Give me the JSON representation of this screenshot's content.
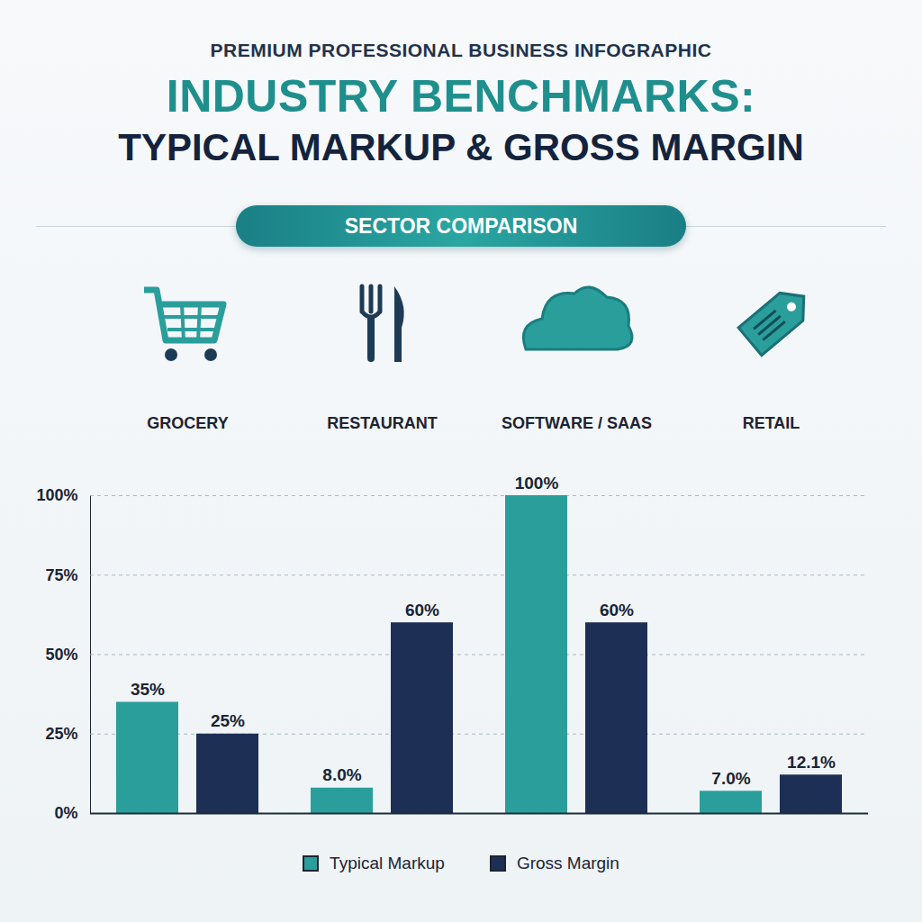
{
  "chart_data": {
    "type": "bar",
    "title": "INDUSTRY BENCHMARKS:",
    "subtitle": "TYPICAL MARKUP & GROSS MARGIN",
    "annotations": [
      "PREMIUM PROFESSIONAL BUSINESS INFOGRAPHIC",
      "SECTOR COMPARISON"
    ],
    "categories": [
      "GROCERY",
      "RESTAURANT",
      "SOFTWARE / SAAS",
      "RETAIL"
    ],
    "series": [
      {
        "name": "Typical Markup",
        "color": "#2a9e9b",
        "values": [
          35,
          8.0,
          100,
          7.0
        ],
        "value_labels": [
          "35%",
          "8.0%",
          "100%",
          "7.0%"
        ]
      },
      {
        "name": "Gross Margin",
        "color": "#1d2f55",
        "values": [
          25,
          60,
          60,
          12.1
        ],
        "value_labels": [
          "25%",
          "60%",
          "60%",
          "12.1%"
        ]
      }
    ],
    "ylim": [
      0,
      100
    ],
    "yticks": [
      {
        "value": 0,
        "label": "0%"
      },
      {
        "value": 25,
        "label": "25%"
      },
      {
        "value": 50,
        "label": "50%"
      },
      {
        "value": 75,
        "label": "75%"
      },
      {
        "value": 100,
        "label": "100%"
      }
    ],
    "grid": true,
    "legend": "bottom",
    "data_labels": true
  }
}
